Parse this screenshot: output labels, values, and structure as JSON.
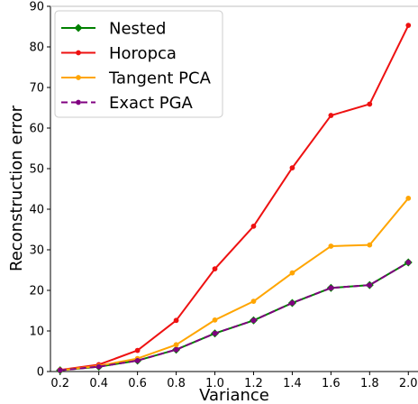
{
  "chart_data": {
    "type": "line",
    "xlabel": "Variance",
    "ylabel": "Reconstruction error",
    "x": [
      0.2,
      0.4,
      0.6,
      0.8,
      1.0,
      1.2,
      1.4,
      1.6,
      1.8,
      2.0
    ],
    "x_ticks": [
      "0.2",
      "0.4",
      "0.6",
      "0.8",
      "1.0",
      "1.2",
      "1.4",
      "1.6",
      "1.8",
      "2.0"
    ],
    "xlim": [
      0.15,
      2.05
    ],
    "ylim": [
      0,
      90
    ],
    "y_ticks": [
      "0",
      "10",
      "20",
      "30",
      "40",
      "50",
      "60",
      "70",
      "80",
      "90"
    ],
    "grid": false,
    "legend_position": "top-left",
    "series": [
      {
        "name": "Nested",
        "color": "#008000",
        "marker": "diamond",
        "dashed": false,
        "values": [
          0.3,
          1.2,
          2.7,
          5.4,
          9.4,
          12.6,
          16.9,
          20.6,
          21.3,
          26.9
        ]
      },
      {
        "name": "Horopca",
        "color": "#ee1111",
        "marker": "circle",
        "dashed": false,
        "values": [
          0.4,
          1.7,
          5.2,
          12.6,
          25.3,
          35.8,
          50.2,
          63.1,
          65.9,
          85.3
        ]
      },
      {
        "name": "Tangent PCA",
        "color": "#ffa500",
        "marker": "circle",
        "dashed": false,
        "values": [
          0.3,
          1.4,
          3.2,
          6.6,
          12.7,
          17.3,
          24.3,
          30.9,
          31.2,
          42.7
        ]
      },
      {
        "name": "Exact PGA",
        "color": "#800080",
        "marker": "circle",
        "dashed": true,
        "values": [
          0.3,
          1.2,
          2.7,
          5.4,
          9.4,
          12.6,
          16.9,
          20.6,
          21.3,
          26.9
        ]
      }
    ]
  }
}
